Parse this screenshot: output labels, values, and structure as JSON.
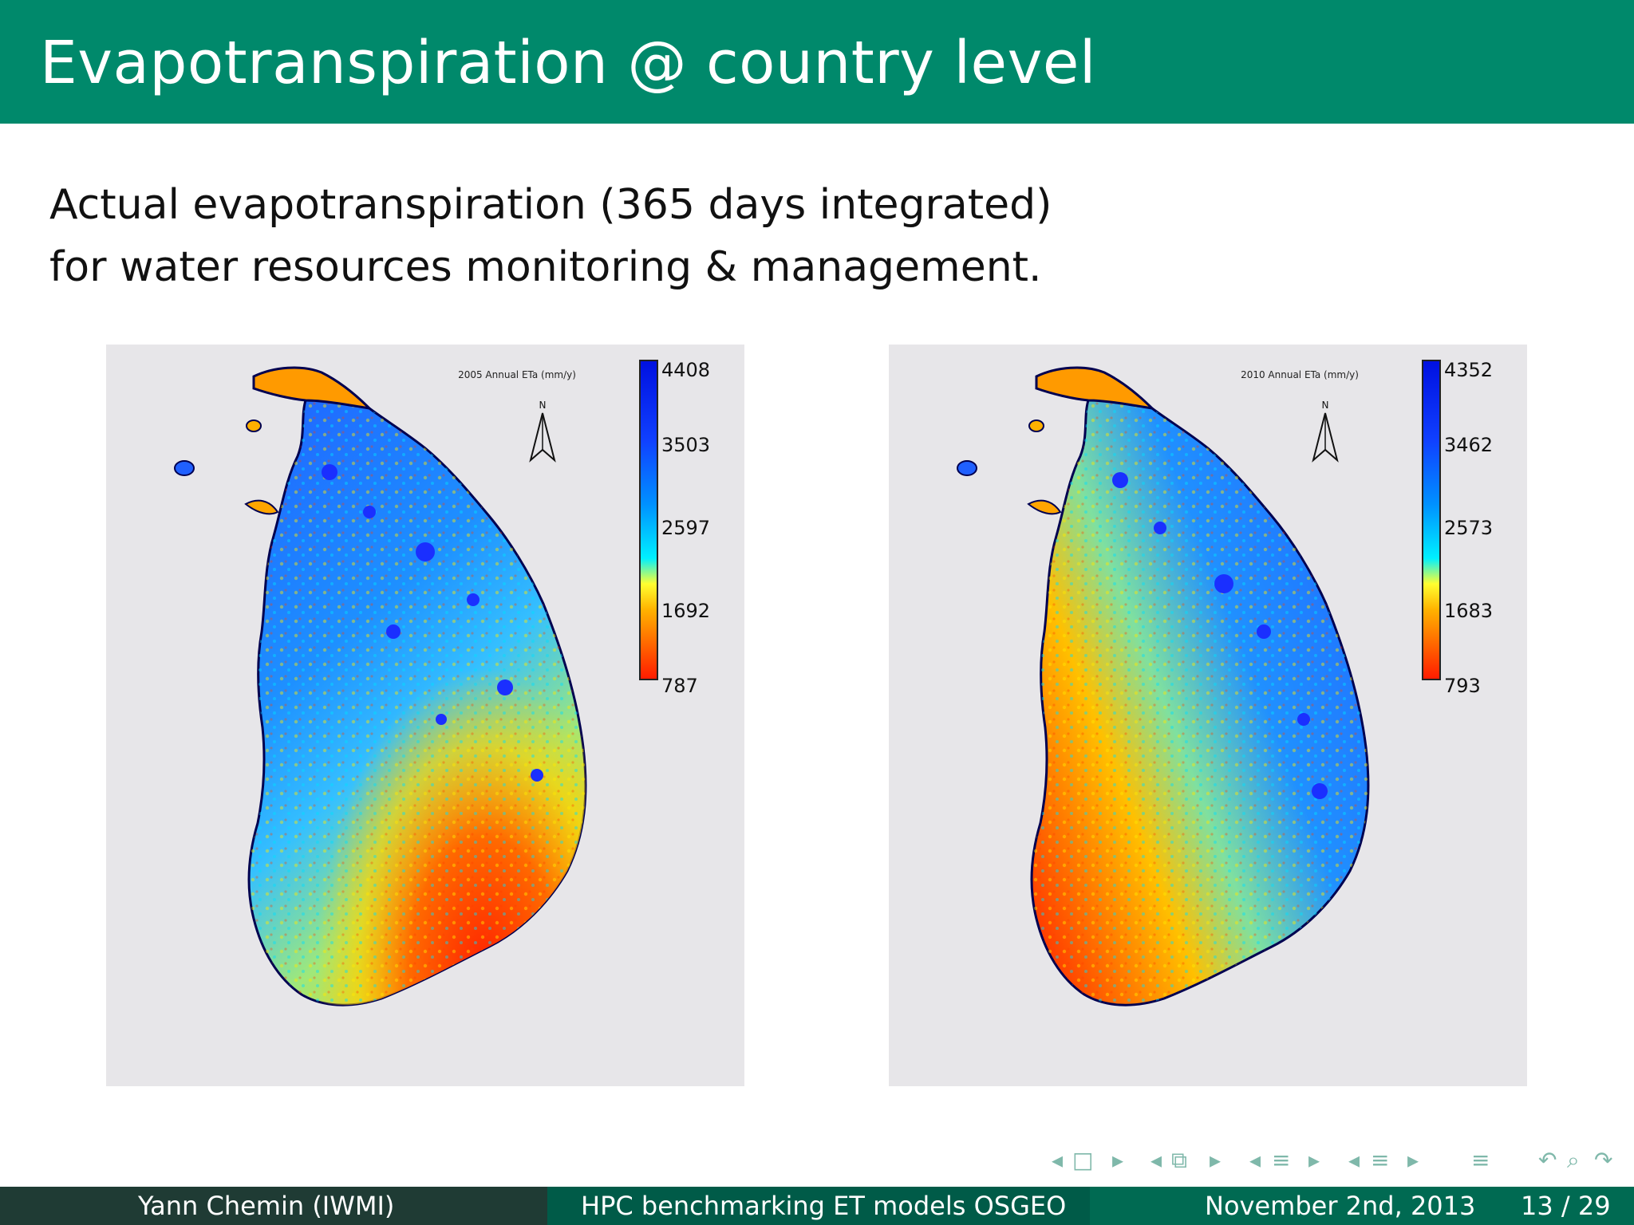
{
  "slide": {
    "title": "Evapotranspiration @ country level",
    "body_line1": "Actual evapotranspiration (365 days integrated)",
    "body_line2": "for water resources monitoring & management."
  },
  "maps": [
    {
      "title": "2005 Annual ETa (mm/y)",
      "north_label": "N",
      "legend_ticks": [
        "4408",
        "3503",
        "2597",
        "1692",
        "787"
      ]
    },
    {
      "title": "2010 Annual ETa (mm/y)",
      "north_label": "N",
      "legend_ticks": [
        "4352",
        "3462",
        "2573",
        "1683",
        "793"
      ]
    }
  ],
  "footer": {
    "author": "Yann Chemin  (IWMI)",
    "talk": "HPC benchmarking ET models OSGEO",
    "date": "November 2nd, 2013",
    "page": "13 / 29"
  },
  "nav_icons": [
    "frame-prev-icon",
    "frame-icon",
    "frame-next-icon",
    "subsection-prev-icon",
    "subsection-icon",
    "subsection-next-icon",
    "section-prev-icon",
    "section-icon",
    "section-next-icon",
    "toc-icon",
    "undo-icon",
    "search-icon"
  ],
  "colors": {
    "header": "#00896b",
    "footer_left": "#1f3b34",
    "footer_mid": "#005b48",
    "footer_right": "#006a52"
  }
}
